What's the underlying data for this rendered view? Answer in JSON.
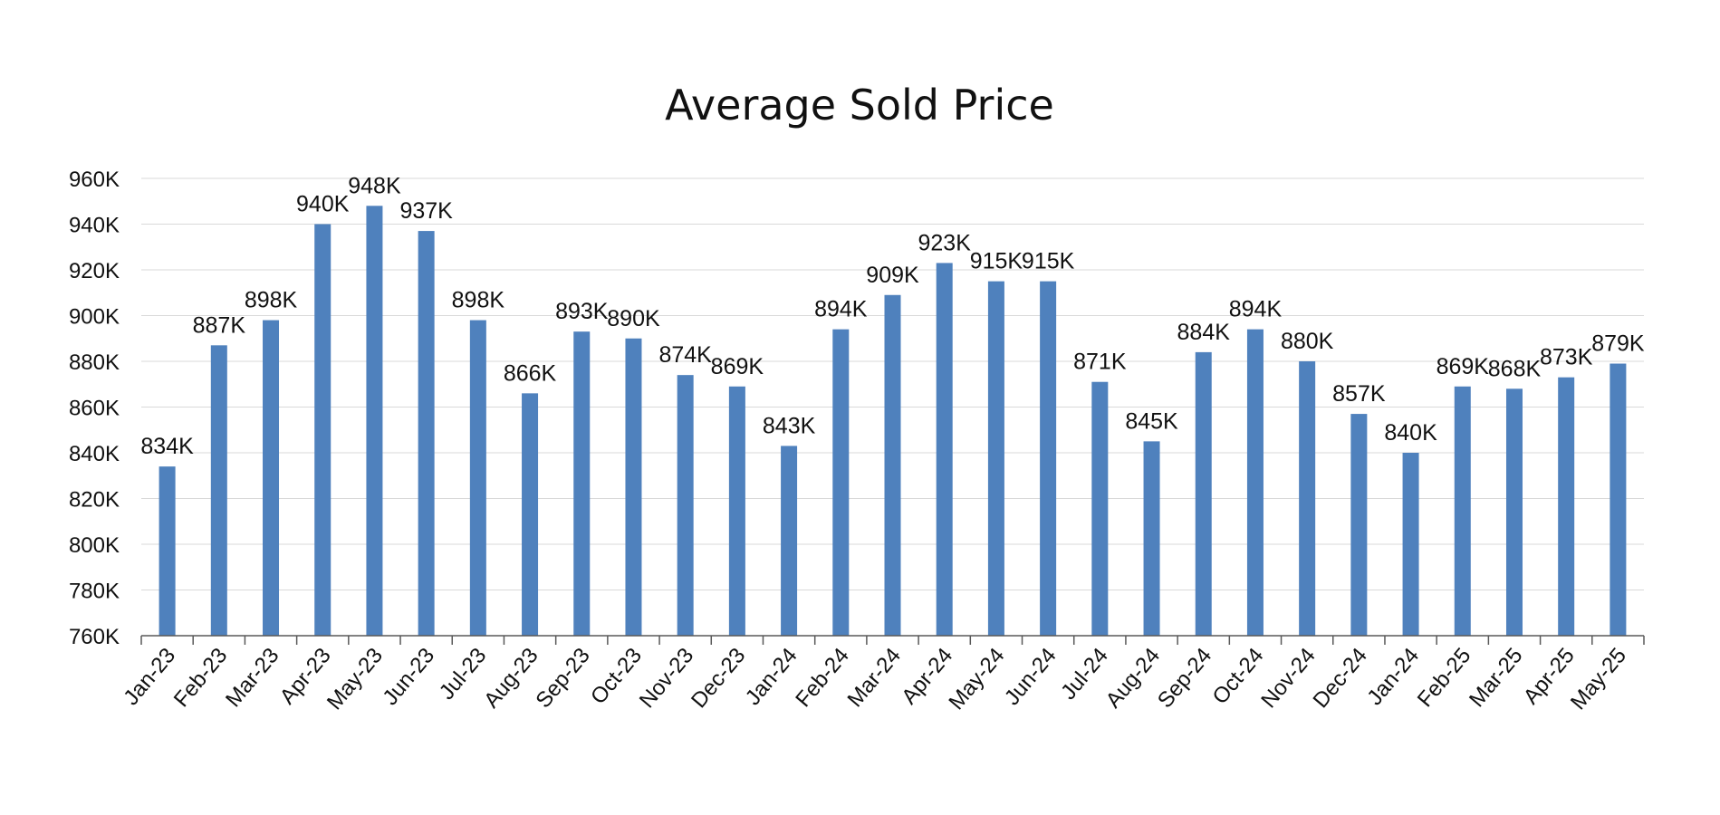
{
  "chart_data": {
    "type": "bar",
    "title": "Average Sold Price",
    "xlabel": "",
    "ylabel": "",
    "categories": [
      "Jan-23",
      "Feb-23",
      "Mar-23",
      "Apr-23",
      "May-23",
      "Jun-23",
      "Jul-23",
      "Aug-23",
      "Sep-23",
      "Oct-23",
      "Nov-23",
      "Dec-23",
      "Jan-24",
      "Feb-24",
      "Mar-24",
      "Apr-24",
      "May-24",
      "Jun-24",
      "Jul-24",
      "Aug-24",
      "Sep-24",
      "Oct-24",
      "Nov-24",
      "Dec-24",
      "Jan-24",
      "Feb-25",
      "Mar-25",
      "Apr-25",
      "May-25"
    ],
    "values": [
      834,
      887,
      898,
      940,
      948,
      937,
      898,
      866,
      893,
      890,
      874,
      869,
      843,
      894,
      909,
      923,
      915,
      915,
      871,
      845,
      884,
      894,
      880,
      857,
      840,
      869,
      868,
      873,
      879
    ],
    "value_labels": [
      "834K",
      "887K",
      "898K",
      "940K",
      "948K",
      "937K",
      "898K",
      "866K",
      "893K",
      "890K",
      "874K",
      "869K",
      "843K",
      "894K",
      "909K",
      "923K",
      "915K",
      "915K",
      "871K",
      "845K",
      "884K",
      "894K",
      "880K",
      "857K",
      "840K",
      "869K",
      "868K",
      "873K",
      "879K"
    ],
    "value_unit": "K",
    "ylim": [
      760,
      960
    ],
    "yticks": [
      760,
      780,
      800,
      820,
      840,
      860,
      880,
      900,
      920,
      940,
      960
    ],
    "ytick_labels": [
      "760K",
      "780K",
      "800K",
      "820K",
      "840K",
      "860K",
      "880K",
      "900K",
      "920K",
      "940K",
      "960K"
    ],
    "grid": true,
    "legend": "none",
    "bar_color": "#4f81bd"
  }
}
